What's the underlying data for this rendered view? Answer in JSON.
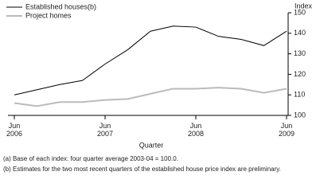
{
  "chart_data": {
    "type": "line",
    "categories": [
      "Jun 2006",
      null,
      null,
      null,
      "Jun 2007",
      null,
      null,
      null,
      "Jun 2008",
      null,
      null,
      null,
      "Jun 2009"
    ],
    "x_label": "Quarter",
    "y_label": "Index",
    "series": [
      {
        "name": "Established houses(b)",
        "color": "#000000",
        "values": [
          110,
          112.5,
          115,
          117,
          125,
          132,
          141,
          143.5,
          143,
          138.5,
          137,
          134,
          141
        ]
      },
      {
        "name": "Project homes",
        "color": "#bbbbbb",
        "values": [
          106,
          104.5,
          106.5,
          106.5,
          107.5,
          108,
          110.5,
          113,
          113,
          113.5,
          113,
          111,
          113
        ]
      }
    ],
    "ylim": [
      100,
      150
    ],
    "yticks": [
      100,
      110,
      120,
      130,
      140,
      150
    ],
    "footnotes": [
      "(a) Base of each index: four quarter average 2003-04 = 100.0.",
      "(b) Estimates for the two most recent quarters of the established house price index are preliminary."
    ]
  }
}
